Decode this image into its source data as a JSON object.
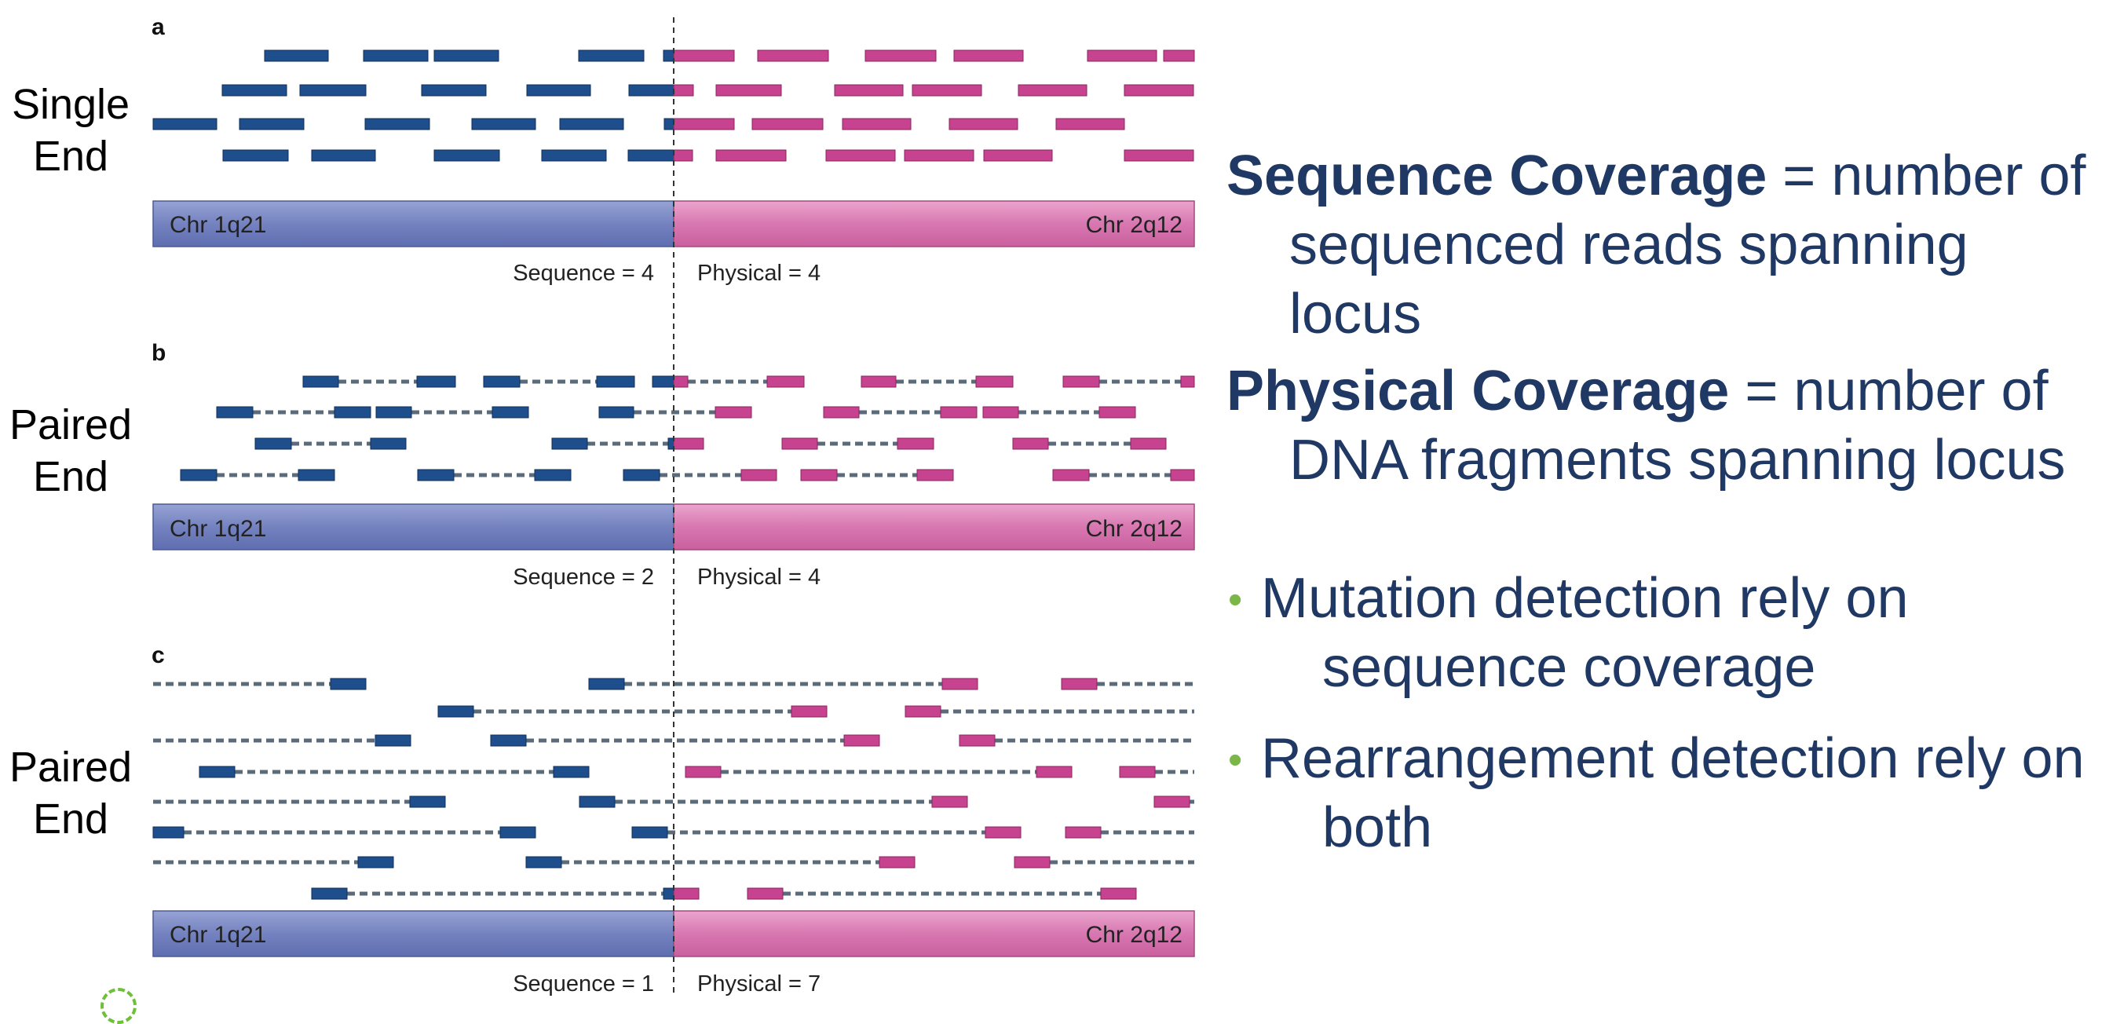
{
  "colors": {
    "left_read": "#1f4e8c",
    "right_read": "#c7428f",
    "dashed_link": "#5b6b7b",
    "chr_left_fill": "#7a88c4",
    "chr_right_fill": "#db7eb5",
    "heading_text": "#1f3864",
    "bullet_dot": "#7ab648"
  },
  "panels": [
    {
      "letter": "a",
      "side_label_line1": "Single",
      "side_label_line2": "End",
      "chr_left_label": "Chr 1q21",
      "chr_right_label": "Chr 2q12",
      "sequence_label": "Sequence = 4",
      "physical_label": "Physical = 4"
    },
    {
      "letter": "b",
      "side_label_line1": "Paired",
      "side_label_line2": "End",
      "chr_left_label": "Chr 1q21",
      "chr_right_label": "Chr 2q12",
      "sequence_label": "Sequence = 2",
      "physical_label": "Physical = 4"
    },
    {
      "letter": "c",
      "side_label_line1": "Paired",
      "side_label_line2": "End",
      "chr_left_label": "Chr 1q21",
      "chr_right_label": "Chr 2q12",
      "sequence_label": "Sequence = 1",
      "physical_label": "Physical = 7"
    }
  ],
  "definitions": [
    {
      "term": "Sequence Coverage",
      "rest_line1": " = number of",
      "line2": "sequenced reads spanning locus"
    },
    {
      "term": "Physical Coverage",
      "rest_line1": " = number of",
      "line2": "DNA fragments spanning locus"
    }
  ],
  "bullets": [
    {
      "dot": "•",
      "line1": "Mutation detection rely on",
      "line2": "sequence coverage"
    },
    {
      "dot": "•",
      "line1": "Rearrangement detection rely on",
      "line2": "both"
    }
  ]
}
